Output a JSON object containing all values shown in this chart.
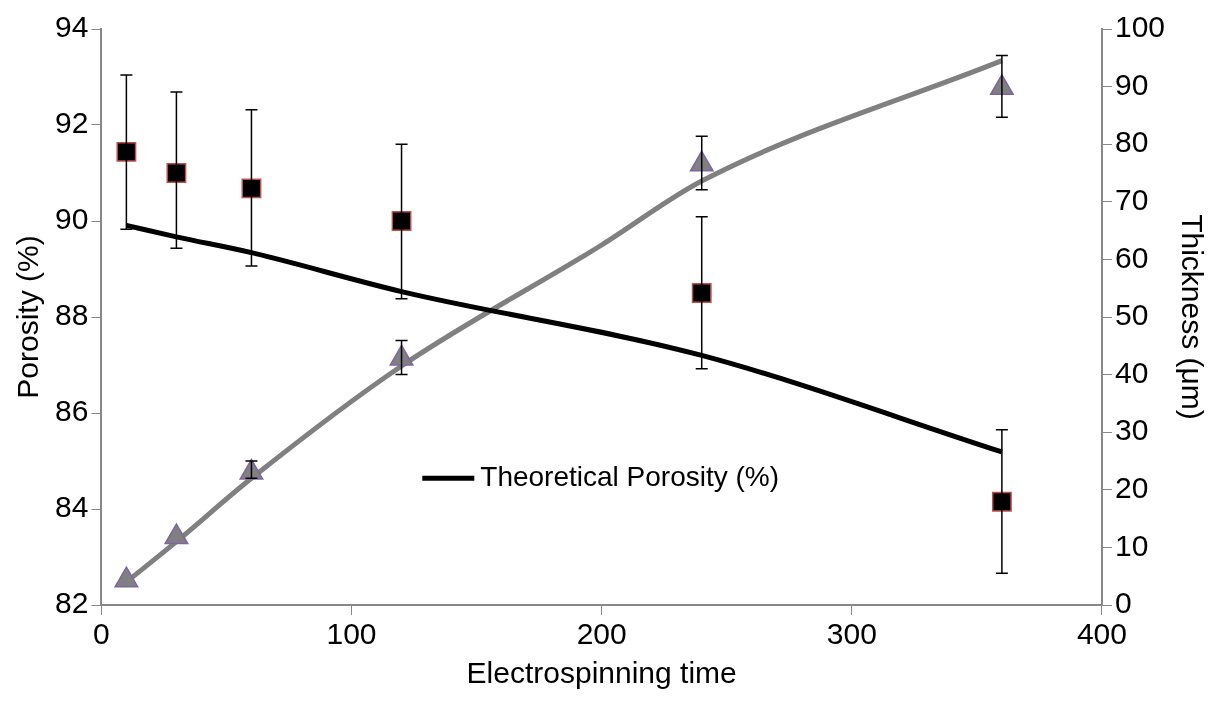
{
  "chart_data": {
    "type": "scatter",
    "xlabel": "Electrospinning time",
    "ylabel": "Porosity (%)",
    "y2label": "Thickness (μm)",
    "xlim": [
      0,
      400
    ],
    "xticks": [
      0,
      100,
      200,
      300,
      400
    ],
    "ylim": [
      82,
      94
    ],
    "yticks": [
      82,
      84,
      86,
      88,
      90,
      92,
      94
    ],
    "y2lim": [
      0,
      100
    ],
    "y2ticks": [
      0,
      10,
      20,
      30,
      40,
      50,
      60,
      70,
      80,
      90,
      100
    ],
    "grid": false,
    "legend": "bottom",
    "line_style": "solid",
    "series": [
      {
        "type": "scatter",
        "marker": "square",
        "color": "#000000",
        "x": [
          10,
          30,
          60,
          120,
          240,
          360
        ],
        "values": [
          91.44,
          91.0,
          90.68,
          90.0,
          88.5,
          84.15
        ],
        "errors": [
          [
            89.83,
            93.04
          ],
          [
            89.43,
            92.69
          ],
          [
            89.06,
            92.32
          ],
          [
            88.38,
            91.6
          ],
          [
            86.92,
            90.09
          ],
          [
            82.66,
            85.65
          ]
        ]
      },
      {
        "type": "line",
        "name": "Theoretical Porosity (%)",
        "marker": "none",
        "color": "#000000",
        "x": [
          10,
          30,
          60,
          120,
          240,
          360
        ],
        "values": [
          89.91,
          89.67,
          89.34,
          88.53,
          87.2,
          85.19
        ]
      },
      {
        "type": "scatter",
        "axis": "y2",
        "marker": "triangle",
        "color": "#808080",
        "x": [
          10,
          30,
          60,
          120,
          240,
          360
        ],
        "values": [
          4.3,
          11.8,
          23.0,
          42.8,
          76.5,
          89.8
        ],
        "errors": [
          null,
          null,
          [
            22,
            25
          ],
          [
            40,
            45.9
          ],
          [
            72.1,
            81.4
          ],
          [
            84.7,
            95.4
          ]
        ]
      },
      {
        "type": "line",
        "axis": "y2",
        "marker": "none",
        "color": "#808080",
        "x": [
          10,
          30,
          60,
          120,
          200,
          240,
          360
        ],
        "values": [
          4.0,
          11.0,
          22.0,
          41.5,
          62.5,
          73.6,
          94.5
        ]
      }
    ]
  }
}
